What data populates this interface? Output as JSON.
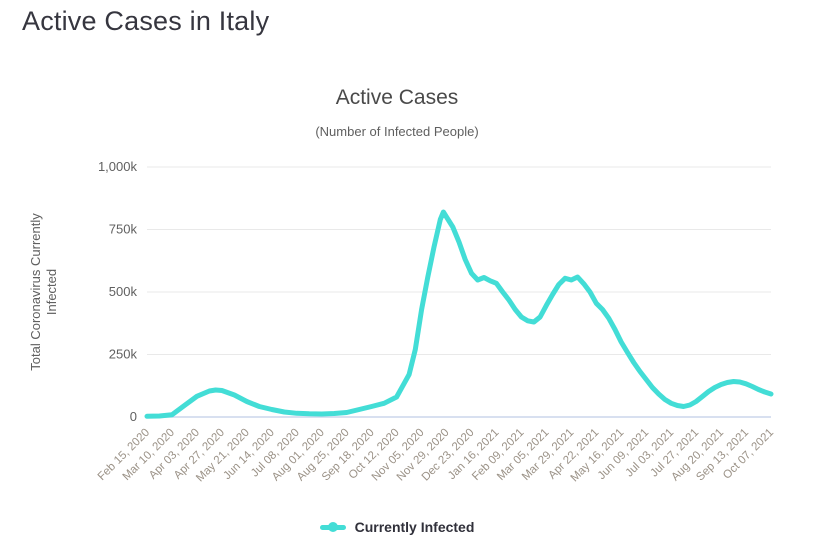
{
  "page": {
    "title": "Active Cases in Italy"
  },
  "chart_data": {
    "type": "line",
    "title": "Active Cases",
    "subtitle": "(Number of Infected People)",
    "y_axis_title_lines": [
      "Total Coronavirus Currently",
      "Infected"
    ],
    "values_unit": "thousands of people",
    "y_max": 1000,
    "ylim": [
      0,
      1000
    ],
    "grid": "horizontal-only",
    "legend_position": "bottom-center",
    "colors": {
      "line": "#43ddd6",
      "grid_line": "#e9e9e9",
      "axis_line": "#ccd6eb",
      "x_label": "#9b9287",
      "y_label": "#606060"
    },
    "y_ticks": [
      {
        "value": 0,
        "label": "0"
      },
      {
        "value": 250,
        "label": "250k"
      },
      {
        "value": 500,
        "label": "500k"
      },
      {
        "value": 750,
        "label": "750k"
      },
      {
        "value": 1000,
        "label": "1,000k"
      }
    ],
    "x_ticks": [
      {
        "date": "2020-02-15",
        "label": "Feb 15, 2020"
      },
      {
        "date": "2020-03-10",
        "label": "Mar 10, 2020"
      },
      {
        "date": "2020-04-03",
        "label": "Apr 03, 2020"
      },
      {
        "date": "2020-04-27",
        "label": "Apr 27, 2020"
      },
      {
        "date": "2020-05-21",
        "label": "May 21, 2020"
      },
      {
        "date": "2020-06-14",
        "label": "Jun 14, 2020"
      },
      {
        "date": "2020-07-08",
        "label": "Jul 08, 2020"
      },
      {
        "date": "2020-08-01",
        "label": "Aug 01, 2020"
      },
      {
        "date": "2020-08-25",
        "label": "Aug 25, 2020"
      },
      {
        "date": "2020-09-18",
        "label": "Sep 18, 2020"
      },
      {
        "date": "2020-10-12",
        "label": "Oct 12, 2020"
      },
      {
        "date": "2020-11-05",
        "label": "Nov 05, 2020"
      },
      {
        "date": "2020-11-29",
        "label": "Nov 29, 2020"
      },
      {
        "date": "2020-12-23",
        "label": "Dec 23, 2020"
      },
      {
        "date": "2021-01-16",
        "label": "Jan 16, 2021"
      },
      {
        "date": "2021-02-09",
        "label": "Feb 09, 2021"
      },
      {
        "date": "2021-03-05",
        "label": "Mar 05, 2021"
      },
      {
        "date": "2021-03-29",
        "label": "Mar 29, 2021"
      },
      {
        "date": "2021-04-22",
        "label": "Apr 22, 2021"
      },
      {
        "date": "2021-05-16",
        "label": "May 16, 2021"
      },
      {
        "date": "2021-06-09",
        "label": "Jun 09, 2021"
      },
      {
        "date": "2021-07-03",
        "label": "Jul 03, 2021"
      },
      {
        "date": "2021-07-27",
        "label": "Jul 27, 2021"
      },
      {
        "date": "2021-08-20",
        "label": "Aug 20, 2021"
      },
      {
        "date": "2021-09-13",
        "label": "Sep 13, 2021"
      },
      {
        "date": "2021-10-07",
        "label": "Oct 07, 2021"
      }
    ],
    "series": [
      {
        "name": "Currently Infected",
        "color": "#43ddd6",
        "points": [
          {
            "date": "2020-02-15",
            "value": 3
          },
          {
            "date": "2020-02-27",
            "value": 4
          },
          {
            "date": "2020-03-10",
            "value": 9
          },
          {
            "date": "2020-03-22",
            "value": 46
          },
          {
            "date": "2020-04-03",
            "value": 83
          },
          {
            "date": "2020-04-15",
            "value": 104
          },
          {
            "date": "2020-04-21",
            "value": 108
          },
          {
            "date": "2020-04-27",
            "value": 106
          },
          {
            "date": "2020-05-09",
            "value": 88
          },
          {
            "date": "2020-05-21",
            "value": 62
          },
          {
            "date": "2020-06-02",
            "value": 42
          },
          {
            "date": "2020-06-14",
            "value": 30
          },
          {
            "date": "2020-06-26",
            "value": 20
          },
          {
            "date": "2020-07-08",
            "value": 15
          },
          {
            "date": "2020-07-20",
            "value": 13
          },
          {
            "date": "2020-08-01",
            "value": 12
          },
          {
            "date": "2020-08-13",
            "value": 14
          },
          {
            "date": "2020-08-25",
            "value": 18
          },
          {
            "date": "2020-09-06",
            "value": 30
          },
          {
            "date": "2020-09-18",
            "value": 42
          },
          {
            "date": "2020-09-30",
            "value": 55
          },
          {
            "date": "2020-10-12",
            "value": 80
          },
          {
            "date": "2020-10-24",
            "value": 170
          },
          {
            "date": "2020-10-30",
            "value": 270
          },
          {
            "date": "2020-11-05",
            "value": 430
          },
          {
            "date": "2020-11-11",
            "value": 560
          },
          {
            "date": "2020-11-17",
            "value": 680
          },
          {
            "date": "2020-11-23",
            "value": 790
          },
          {
            "date": "2020-11-26",
            "value": 820
          },
          {
            "date": "2020-11-29",
            "value": 800
          },
          {
            "date": "2020-12-05",
            "value": 760
          },
          {
            "date": "2020-12-11",
            "value": 700
          },
          {
            "date": "2020-12-17",
            "value": 630
          },
          {
            "date": "2020-12-23",
            "value": 575
          },
          {
            "date": "2020-12-29",
            "value": 548
          },
          {
            "date": "2021-01-04",
            "value": 558
          },
          {
            "date": "2021-01-10",
            "value": 545
          },
          {
            "date": "2021-01-16",
            "value": 535
          },
          {
            "date": "2021-01-22",
            "value": 500
          },
          {
            "date": "2021-01-28",
            "value": 468
          },
          {
            "date": "2021-02-03",
            "value": 430
          },
          {
            "date": "2021-02-09",
            "value": 400
          },
          {
            "date": "2021-02-15",
            "value": 385
          },
          {
            "date": "2021-02-21",
            "value": 380
          },
          {
            "date": "2021-02-27",
            "value": 400
          },
          {
            "date": "2021-03-05",
            "value": 447
          },
          {
            "date": "2021-03-11",
            "value": 490
          },
          {
            "date": "2021-03-17",
            "value": 530
          },
          {
            "date": "2021-03-23",
            "value": 555
          },
          {
            "date": "2021-03-29",
            "value": 548
          },
          {
            "date": "2021-04-04",
            "value": 560
          },
          {
            "date": "2021-04-10",
            "value": 533
          },
          {
            "date": "2021-04-16",
            "value": 500
          },
          {
            "date": "2021-04-22",
            "value": 455
          },
          {
            "date": "2021-04-28",
            "value": 430
          },
          {
            "date": "2021-05-04",
            "value": 395
          },
          {
            "date": "2021-05-10",
            "value": 350
          },
          {
            "date": "2021-05-16",
            "value": 300
          },
          {
            "date": "2021-05-22",
            "value": 258
          },
          {
            "date": "2021-05-28",
            "value": 218
          },
          {
            "date": "2021-06-03",
            "value": 182
          },
          {
            "date": "2021-06-09",
            "value": 150
          },
          {
            "date": "2021-06-15",
            "value": 118
          },
          {
            "date": "2021-06-21",
            "value": 92
          },
          {
            "date": "2021-06-27",
            "value": 70
          },
          {
            "date": "2021-07-03",
            "value": 55
          },
          {
            "date": "2021-07-09",
            "value": 46
          },
          {
            "date": "2021-07-15",
            "value": 42
          },
          {
            "date": "2021-07-21",
            "value": 48
          },
          {
            "date": "2021-07-27",
            "value": 62
          },
          {
            "date": "2021-08-02",
            "value": 82
          },
          {
            "date": "2021-08-08",
            "value": 102
          },
          {
            "date": "2021-08-14",
            "value": 118
          },
          {
            "date": "2021-08-20",
            "value": 130
          },
          {
            "date": "2021-08-26",
            "value": 138
          },
          {
            "date": "2021-09-01",
            "value": 142
          },
          {
            "date": "2021-09-07",
            "value": 140
          },
          {
            "date": "2021-09-13",
            "value": 133
          },
          {
            "date": "2021-09-19",
            "value": 122
          },
          {
            "date": "2021-09-25",
            "value": 110
          },
          {
            "date": "2021-10-01",
            "value": 100
          },
          {
            "date": "2021-10-07",
            "value": 92
          }
        ]
      }
    ]
  }
}
